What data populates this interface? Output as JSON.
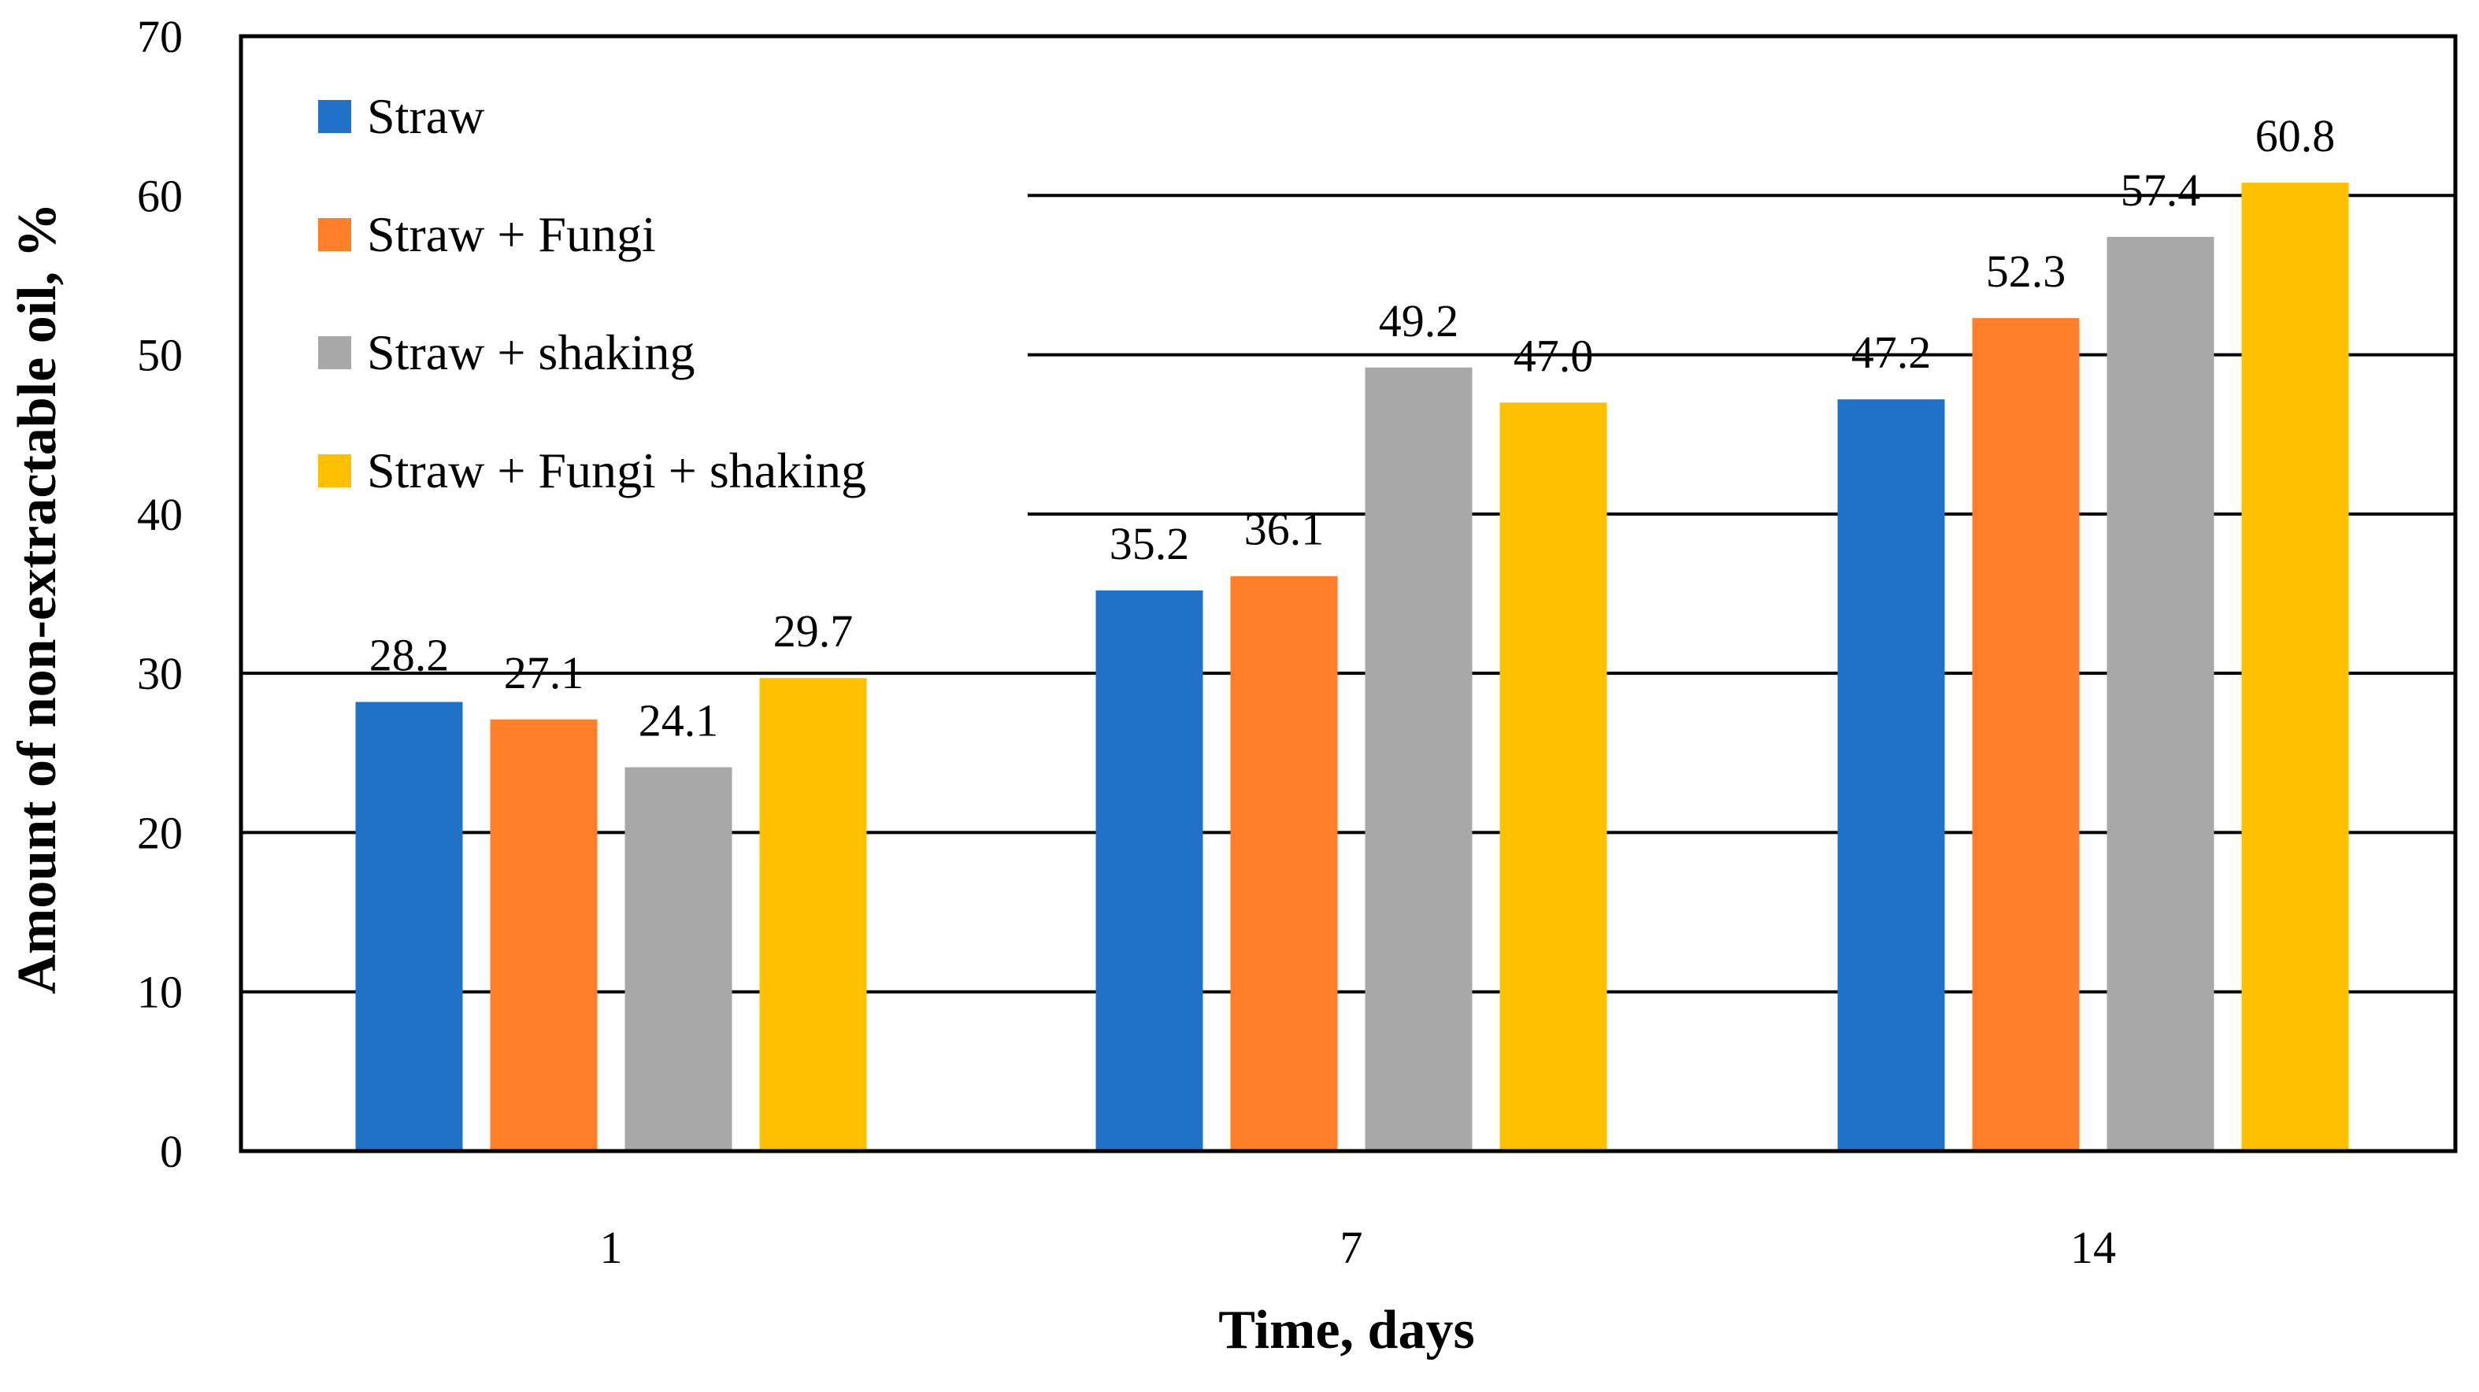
{
  "chart_data": {
    "type": "bar",
    "title": "",
    "xlabel": "Time, days",
    "ylabel": "Amount of non-extractable oil, %",
    "categories": [
      "1",
      "7",
      "14"
    ],
    "ylim": [
      0,
      70
    ],
    "yticks": [
      0,
      10,
      20,
      30,
      40,
      50,
      60,
      70
    ],
    "ytick_labels": [
      "0",
      "10",
      "20",
      "30",
      "40",
      "50",
      "60",
      "70"
    ],
    "grid": true,
    "legend_position": "top-left",
    "series": [
      {
        "name": "Straw",
        "color": "#1F72C8",
        "values": [
          28.2,
          35.2,
          47.2
        ],
        "labels": [
          "28.2",
          "35.2",
          "47.2"
        ]
      },
      {
        "name": "Straw + Fungi",
        "color": "#FE7F27",
        "values": [
          27.1,
          36.1,
          52.3
        ],
        "labels": [
          "27.1",
          "36.1",
          "52.3"
        ]
      },
      {
        "name": "Straw + shaking",
        "color": "#A8A8A8",
        "values": [
          24.1,
          49.2,
          57.4
        ],
        "labels": [
          "24.1",
          "49.2",
          "57.4"
        ]
      },
      {
        "name": "Straw + Fungi + shaking",
        "color": "#FFC000",
        "values": [
          29.7,
          47.0,
          60.8
        ],
        "labels": [
          "29.7",
          "47.0",
          "60.8"
        ]
      }
    ]
  }
}
